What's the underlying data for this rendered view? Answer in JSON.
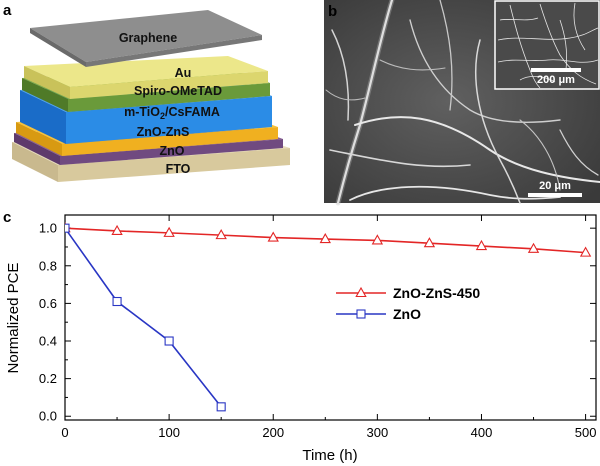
{
  "panel_a": {
    "letter": "a",
    "layers": [
      {
        "name": "FTO",
        "color": "#ddd0a8"
      },
      {
        "name": "ZnO",
        "color": "#7a4f86"
      },
      {
        "name": "ZnO-ZnS",
        "color": "#f2b21e"
      },
      {
        "name": "m-TiO2/CsFAMA",
        "color": "#2d8fe8"
      },
      {
        "name": "Spiro-OMeTAD",
        "color": "#6a9a3a"
      },
      {
        "name": "Au",
        "color": "#e6e07a"
      },
      {
        "name": "Graphene",
        "color": "#8c8c8c"
      }
    ],
    "labels": {
      "graphene": "Graphene",
      "au": "Au",
      "spiro": "Spiro-OMeTAD",
      "tio2_prefix": "m-TiO",
      "tio2_sub": "2",
      "tio2_suffix": "/CsFAMA",
      "znozns": "ZnO-ZnS",
      "zno": "ZnO",
      "fto": "FTO"
    }
  },
  "panel_b": {
    "letter": "b",
    "scale_bar_main": "20 μm",
    "scale_bar_inset": "200 μm"
  },
  "chart_data": {
    "type": "line",
    "panel_letter": "c",
    "xlabel": "Time (h)",
    "ylabel": "Normalized PCE",
    "xlim": [
      0,
      510
    ],
    "ylim": [
      -0.02,
      1.07
    ],
    "xticks": [
      0,
      100,
      200,
      300,
      400,
      500
    ],
    "yticks": [
      0.0,
      0.2,
      0.4,
      0.6,
      0.8,
      1.0
    ],
    "xtick_labels": [
      "0",
      "100",
      "200",
      "300",
      "400",
      "500"
    ],
    "ytick_labels": [
      "0.0",
      "0.2",
      "0.4",
      "0.6",
      "0.8",
      "1.0"
    ],
    "legend_position": "center-right",
    "series": [
      {
        "name": "ZnO-ZnS-450",
        "color": "#e32626",
        "marker": "triangle",
        "x": [
          0,
          50,
          100,
          150,
          200,
          250,
          300,
          350,
          400,
          450,
          500
        ],
        "y": [
          1.0,
          0.985,
          0.975,
          0.963,
          0.95,
          0.942,
          0.935,
          0.92,
          0.905,
          0.89,
          0.87
        ]
      },
      {
        "name": "ZnO",
        "color": "#2936c4",
        "marker": "square",
        "x": [
          0,
          50,
          100,
          150
        ],
        "y": [
          1.0,
          0.61,
          0.4,
          0.05
        ]
      }
    ]
  }
}
